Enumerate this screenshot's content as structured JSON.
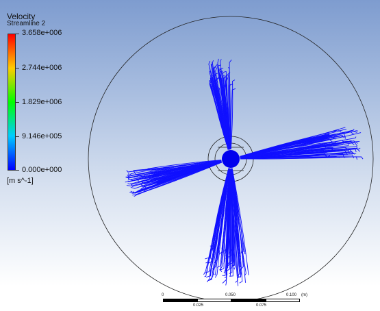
{
  "legend": {
    "variable": "Velocity",
    "name": "Streamline 2",
    "ticks": [
      "3.658e+006",
      "2.744e+006",
      "1.829e+006",
      "9.146e+005",
      "0.000e+000"
    ],
    "unit": "[m s^-1]",
    "colors": [
      "#ff0000",
      "#ffcc00",
      "#00ff00",
      "#00ccff",
      "#0000ff"
    ]
  },
  "scale_bar": {
    "top_labels": [
      "0",
      "0.050",
      "0.100",
      "(m)"
    ],
    "bottom_labels": [
      "0.025",
      "0.075"
    ]
  },
  "colors": {
    "streamline": "#1010ff",
    "hub": "#0000ee",
    "outline": "#222222"
  }
}
